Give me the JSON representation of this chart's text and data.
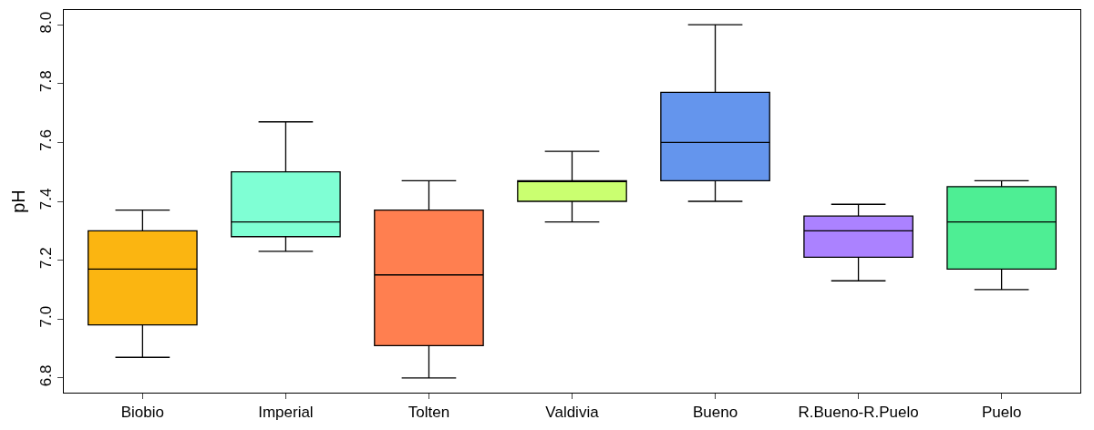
{
  "chart_data": {
    "type": "box",
    "ylabel": "pH",
    "categories": [
      "Biobio",
      "Imperial",
      "Tolten",
      "Valdivia",
      "Bueno",
      "R.Bueno-R.Puelo",
      "Puelo"
    ],
    "colors": [
      "#fbb511",
      "#7fffd4",
      "#ff7f50",
      "#caff70",
      "#6495ed",
      "#ab82ff",
      "#4eee94"
    ],
    "boxes": [
      {
        "low": 6.87,
        "q1": 6.98,
        "median": 7.17,
        "q3": 7.3,
        "high": 7.37
      },
      {
        "low": 7.23,
        "q1": 7.28,
        "median": 7.33,
        "q3": 7.5,
        "high": 7.67
      },
      {
        "low": 6.8,
        "q1": 6.91,
        "median": 7.15,
        "q3": 7.37,
        "high": 7.47
      },
      {
        "low": 7.33,
        "q1": 7.4,
        "median": 7.47,
        "q3": 7.47,
        "high": 7.57
      },
      {
        "low": 7.4,
        "q1": 7.47,
        "median": 7.6,
        "q3": 7.77,
        "high": 8.0
      },
      {
        "low": 7.13,
        "q1": 7.21,
        "median": 7.3,
        "q3": 7.35,
        "high": 7.39
      },
      {
        "low": 7.1,
        "q1": 7.17,
        "median": 7.33,
        "q3": 7.45,
        "high": 7.47
      }
    ],
    "ylim": [
      6.75,
      8.05
    ],
    "yticks": [
      {
        "value": 6.8,
        "label": "6.8"
      },
      {
        "value": 7.0,
        "label": "7.0"
      },
      {
        "value": 7.2,
        "label": "7.2"
      },
      {
        "value": 7.4,
        "label": "7.4"
      },
      {
        "value": 7.6,
        "label": "7.6"
      },
      {
        "value": 7.8,
        "label": "7.8"
      },
      {
        "value": 8.0,
        "label": "8.0"
      }
    ],
    "legend": false
  }
}
